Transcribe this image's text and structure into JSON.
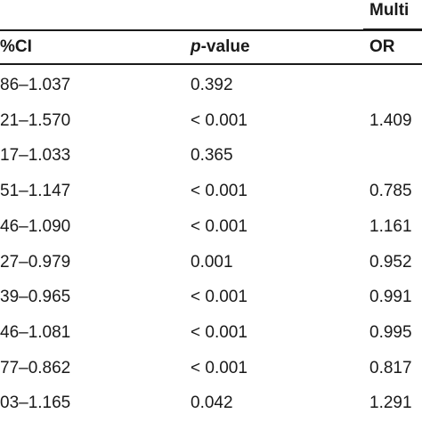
{
  "table": {
    "group_header": "Multi",
    "columns": {
      "ci": "%CI",
      "p_prefix": "p",
      "p_suffix": "-value",
      "or": "OR"
    },
    "rows": [
      {
        "ci": "86–1.037",
        "p": "0.392",
        "or": ""
      },
      {
        "ci": "21–1.570",
        "p": "< 0.001",
        "or": "1.409"
      },
      {
        "ci": "17–1.033",
        "p": "0.365",
        "or": ""
      },
      {
        "ci": "51–1.147",
        "p": "< 0.001",
        "or": "0.785"
      },
      {
        "ci": "46–1.090",
        "p": "< 0.001",
        "or": "1.161"
      },
      {
        "ci": "27–0.979",
        "p": "0.001",
        "or": "0.952"
      },
      {
        "ci": "39–0.965",
        "p": "< 0.001",
        "or": "0.991"
      },
      {
        "ci": "46–1.081",
        "p": "< 0.001",
        "or": "0.995"
      },
      {
        "ci": "77–0.862",
        "p": "< 0.001",
        "or": "0.817"
      },
      {
        "ci": "03–1.165",
        "p": "0.042",
        "or": "1.291"
      }
    ]
  }
}
